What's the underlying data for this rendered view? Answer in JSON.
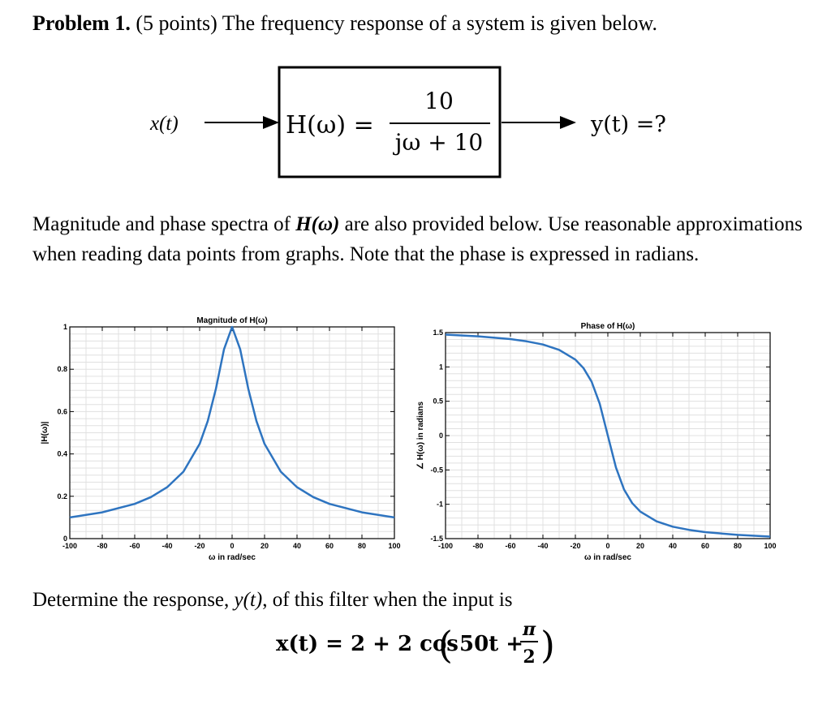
{
  "problem": {
    "label": "Problem 1.",
    "points": "(5 points)",
    "statement": "The frequency response of a system is given below."
  },
  "block_diagram": {
    "input": "x(t)",
    "transfer_lhs": "H(ω) =",
    "numerator": "10",
    "denominator": "jω + 10",
    "output": "y(t) =?"
  },
  "paragraph": {
    "part1": "Magnitude and phase spectra of ",
    "bold": "H(ω)",
    "part2": " are also provided below. Use reasonable approximations when reading data points from graphs. Note that the phase is expressed in radians."
  },
  "question": {
    "text_before": "Determine the response, ",
    "var": "y(t)",
    "text_after": ", of this filter when the input is",
    "equation_lhs": "x(t) = 2 + 2 cos",
    "equation_inner": "50t +",
    "pi": "π",
    "two": "2"
  },
  "chart_data": [
    {
      "type": "line",
      "title": "Magnitude of H(ω)",
      "xlabel": "ω in rad/sec",
      "ylabel": "|H(ω)|",
      "xlim": [
        -100,
        100
      ],
      "ylim": [
        0,
        1
      ],
      "x_ticks": [
        "-100",
        "-80",
        "-60",
        "-40",
        "-20",
        "0",
        "20",
        "40",
        "60",
        "80",
        "100"
      ],
      "y_ticks": [
        "0",
        "0.2",
        "0.4",
        "0.6",
        "0.8",
        "1"
      ],
      "grid": true,
      "series": [
        {
          "color": "#2e74c0",
          "x": [
            -100,
            -80,
            -60,
            -50,
            -40,
            -30,
            -20,
            -15,
            -10,
            -5,
            0,
            5,
            10,
            15,
            20,
            30,
            40,
            50,
            60,
            80,
            100
          ],
          "y": [
            0.1,
            0.124,
            0.164,
            0.196,
            0.243,
            0.316,
            0.447,
            0.555,
            0.707,
            0.894,
            1.0,
            0.894,
            0.707,
            0.555,
            0.447,
            0.316,
            0.243,
            0.196,
            0.164,
            0.124,
            0.1
          ]
        }
      ]
    },
    {
      "type": "line",
      "title": "Phase of H(ω)",
      "xlabel": "ω in rad/sec",
      "ylabel": "∠ H(ω) in radians",
      "xlim": [
        -100,
        100
      ],
      "ylim": [
        -1.5,
        1.5
      ],
      "x_ticks": [
        "-100",
        "-80",
        "-60",
        "-40",
        "-20",
        "0",
        "20",
        "40",
        "60",
        "80",
        "100"
      ],
      "y_ticks": [
        "-1.5",
        "-1",
        "-0.5",
        "0",
        "0.5",
        "1",
        "1.5"
      ],
      "grid": true,
      "series": [
        {
          "color": "#2e74c0",
          "x": [
            -100,
            -80,
            -60,
            -50,
            -40,
            -30,
            -20,
            -15,
            -10,
            -5,
            0,
            5,
            10,
            15,
            20,
            30,
            40,
            50,
            60,
            80,
            100
          ],
          "y": [
            1.471,
            1.446,
            1.406,
            1.373,
            1.326,
            1.249,
            1.107,
            0.983,
            0.785,
            0.464,
            0.0,
            -0.464,
            -0.785,
            -0.983,
            -1.107,
            -1.249,
            -1.326,
            -1.373,
            -1.406,
            -1.446,
            -1.471
          ]
        }
      ]
    }
  ],
  "colors": {
    "curve": "#2e74c0",
    "grid": "#e0e0e0"
  }
}
